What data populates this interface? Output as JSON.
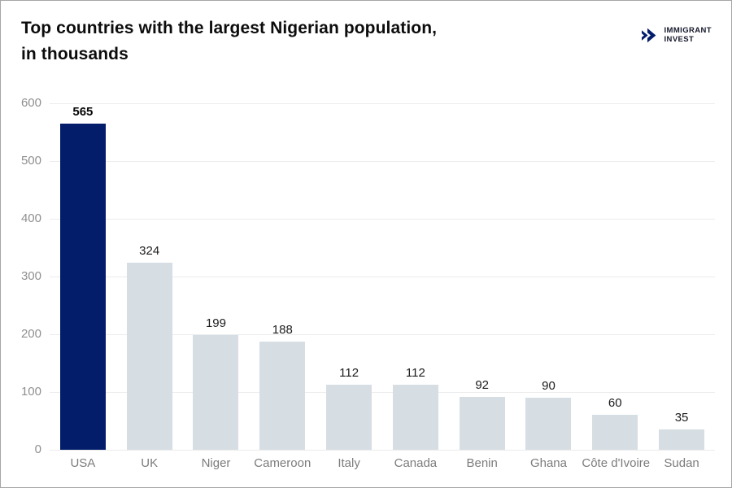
{
  "header": {
    "title_line1": "Top countries with the largest Nigerian population,",
    "title_line2": "in thousands",
    "logo": {
      "line1": "IMMIGRANT",
      "line2": "INVEST",
      "icon": "double-chevron-right-icon",
      "icon_color": "#041d6b",
      "text_color": "#15182b"
    }
  },
  "chart_data": {
    "type": "bar",
    "title": "Top countries with the largest Nigerian population, in thousands",
    "categories": [
      "USA",
      "UK",
      "Niger",
      "Cameroon",
      "Italy",
      "Canada",
      "Benin",
      "Ghana",
      "Côte d'Ivoire",
      "Sudan"
    ],
    "values": [
      565,
      324,
      199,
      188,
      112,
      112,
      92,
      90,
      60,
      35
    ],
    "highlight_index": 0,
    "highlight_color": "#041d6b",
    "bar_color": "#d6dee3",
    "value_labels": true,
    "xlabel": "",
    "ylabel": "",
    "ylim": [
      0,
      600
    ],
    "yticks": [
      0,
      100,
      200,
      300,
      400,
      500,
      600
    ],
    "grid": true,
    "gridline_color": "#ececec",
    "legend": false
  }
}
